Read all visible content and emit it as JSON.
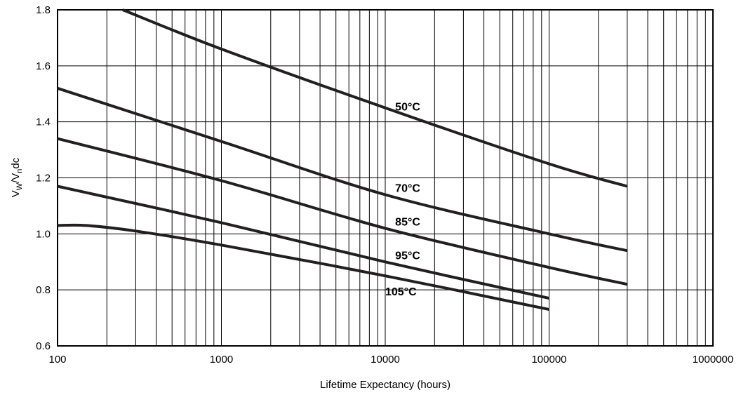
{
  "chart_data": {
    "type": "line",
    "xlabel": "Lifetime Expectancy (hours)",
    "ylabel": "V",
    "ylabel_sub1": "W",
    "ylabel_mid": "/V",
    "ylabel_sub2": "n",
    "ylabel_tail": "dc",
    "x_scale": "log",
    "xlim": [
      100,
      1000000
    ],
    "ylim": [
      0.6,
      1.8
    ],
    "grid": true,
    "x_ticks": [
      100,
      1000,
      10000,
      100000,
      1000000
    ],
    "x_tick_labels": [
      "100",
      "1000",
      "10000",
      "100000",
      "1000000"
    ],
    "y_ticks": [
      0.6,
      0.8,
      1.0,
      1.2,
      1.4,
      1.6,
      1.8
    ],
    "y_tick_labels": [
      "0.6",
      "0.8",
      "1.0",
      "1.2",
      "1.4",
      "1.6",
      "1.8"
    ],
    "series": [
      {
        "name": "50°C",
        "label_at": [
          11500,
          1.44
        ],
        "points": [
          [
            250,
            1.8
          ],
          [
            1000,
            1.66
          ],
          [
            10000,
            1.45
          ],
          [
            100000,
            1.25
          ],
          [
            300000,
            1.17
          ]
        ]
      },
      {
        "name": "70°C",
        "label_at": [
          11500,
          1.15
        ],
        "points": [
          [
            100,
            1.52
          ],
          [
            1000,
            1.33
          ],
          [
            10000,
            1.14
          ],
          [
            100000,
            1.0
          ],
          [
            300000,
            0.94
          ]
        ]
      },
      {
        "name": "85°C",
        "label_at": [
          11500,
          1.03
        ],
        "points": [
          [
            100,
            1.34
          ],
          [
            1000,
            1.19
          ],
          [
            10000,
            1.02
          ],
          [
            100000,
            0.88
          ],
          [
            300000,
            0.82
          ]
        ]
      },
      {
        "name": "95°C",
        "label_at": [
          11500,
          0.91
        ],
        "points": [
          [
            100,
            1.17
          ],
          [
            1000,
            1.04
          ],
          [
            10000,
            0.9
          ],
          [
            100000,
            0.77
          ]
        ]
      },
      {
        "name": "105°C",
        "label_at": [
          10000,
          0.78
        ],
        "points": [
          [
            100,
            1.03
          ],
          [
            150,
            1.03
          ],
          [
            300,
            1.01
          ],
          [
            1000,
            0.96
          ],
          [
            10000,
            0.85
          ],
          [
            100000,
            0.73
          ]
        ]
      }
    ]
  }
}
